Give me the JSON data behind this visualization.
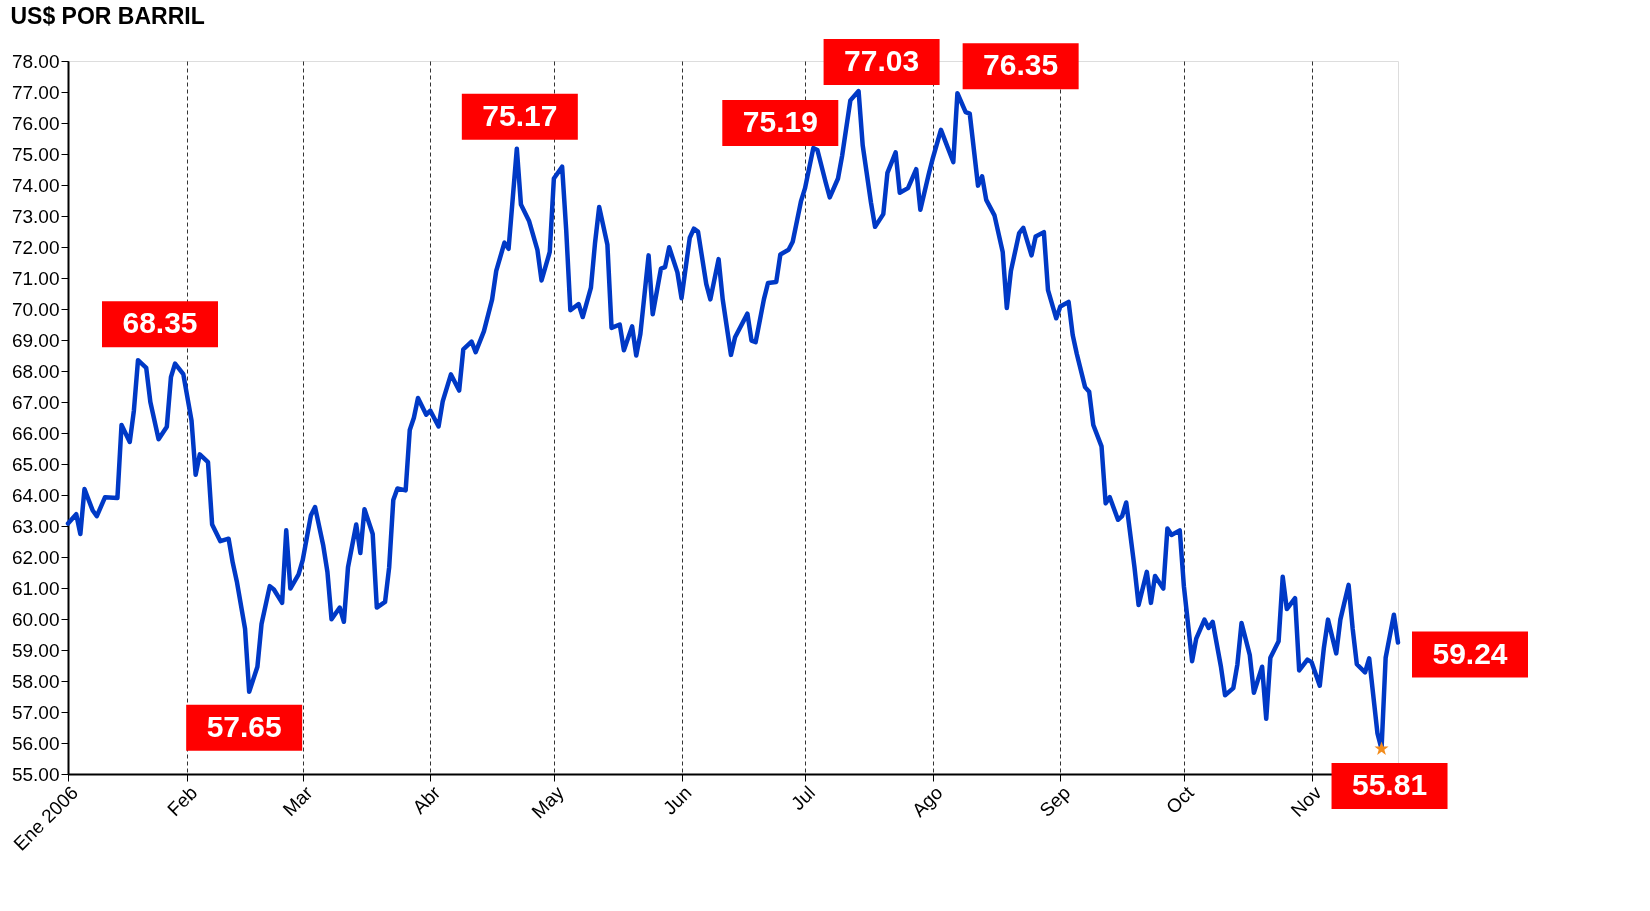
{
  "chart_data": {
    "type": "line",
    "title": "US$ POR BARRIL",
    "x": [
      "2006-01-03",
      "2006-01-05",
      "2006-01-06",
      "2006-01-07",
      "2006-01-09",
      "2006-01-10",
      "2006-01-12",
      "2006-01-15",
      "2006-01-16",
      "2006-01-18",
      "2006-01-19",
      "2006-01-20",
      "2006-01-22",
      "2006-01-23",
      "2006-01-25",
      "2006-01-27",
      "2006-01-28",
      "2006-01-29",
      "2006-01-31",
      "2006-02-02",
      "2006-02-03",
      "2006-02-04",
      "2006-02-06",
      "2006-02-07",
      "2006-02-09",
      "2006-02-11",
      "2006-02-12",
      "2006-02-13",
      "2006-02-15",
      "2006-02-16",
      "2006-02-18",
      "2006-02-19",
      "2006-02-21",
      "2006-02-22",
      "2006-02-24",
      "2006-02-25",
      "2006-02-26",
      "2006-02-28",
      "2006-03-01",
      "2006-03-03",
      "2006-03-04",
      "2006-03-06",
      "2006-03-07",
      "2006-03-08",
      "2006-03-10",
      "2006-03-11",
      "2006-03-12",
      "2006-03-14",
      "2006-03-15",
      "2006-03-16",
      "2006-03-18",
      "2006-03-19",
      "2006-03-21",
      "2006-03-22",
      "2006-03-23",
      "2006-03-24",
      "2006-03-26",
      "2006-03-27",
      "2006-03-28",
      "2006-03-29",
      "2006-03-31",
      "2006-04-01",
      "2006-04-03",
      "2006-04-04",
      "2006-04-06",
      "2006-04-08",
      "2006-04-09",
      "2006-04-11",
      "2006-04-12",
      "2006-04-14",
      "2006-04-16",
      "2006-04-17",
      "2006-04-19",
      "2006-04-20",
      "2006-04-22",
      "2006-04-23",
      "2006-04-25",
      "2006-04-27",
      "2006-04-28",
      "2006-04-30",
      "2006-05-01",
      "2006-05-03",
      "2006-05-04",
      "2006-05-05",
      "2006-05-07",
      "2006-05-08",
      "2006-05-10",
      "2006-05-11",
      "2006-05-12",
      "2006-05-14",
      "2006-05-15",
      "2006-05-17",
      "2006-05-18",
      "2006-05-20",
      "2006-05-21",
      "2006-05-22",
      "2006-05-24",
      "2006-05-25",
      "2006-05-27",
      "2006-05-28",
      "2006-05-29",
      "2006-05-31",
      "2006-06-01",
      "2006-06-03",
      "2006-06-04",
      "2006-06-05",
      "2006-06-07",
      "2006-06-08",
      "2006-06-10",
      "2006-06-11",
      "2006-06-13",
      "2006-06-14",
      "2006-06-17",
      "2006-06-18",
      "2006-06-19",
      "2006-06-21",
      "2006-06-22",
      "2006-06-24",
      "2006-06-25",
      "2006-06-27",
      "2006-06-28",
      "2006-06-30",
      "2006-07-01",
      "2006-07-03",
      "2006-07-04",
      "2006-07-06",
      "2006-07-07",
      "2006-07-09",
      "2006-07-10",
      "2006-07-12",
      "2006-07-14",
      "2006-07-15",
      "2006-07-17",
      "2006-07-18",
      "2006-07-20",
      "2006-07-21",
      "2006-07-23",
      "2006-07-24",
      "2006-07-26",
      "2006-07-28",
      "2006-07-29",
      "2006-07-31",
      "2006-08-01",
      "2006-08-03",
      "2006-08-04",
      "2006-08-06",
      "2006-08-07",
      "2006-08-09",
      "2006-08-10",
      "2006-08-12",
      "2006-08-13",
      "2006-08-14",
      "2006-08-16",
      "2006-08-18",
      "2006-08-19",
      "2006-08-20",
      "2006-08-22",
      "2006-08-23",
      "2006-08-25",
      "2006-08-26",
      "2006-08-28",
      "2006-08-29",
      "2006-08-31",
      "2006-09-01",
      "2006-09-03",
      "2006-09-04",
      "2006-09-05",
      "2006-09-07",
      "2006-09-08",
      "2006-09-09",
      "2006-09-11",
      "2006-09-12",
      "2006-09-13",
      "2006-09-15",
      "2006-09-16",
      "2006-09-17",
      "2006-09-19",
      "2006-09-20",
      "2006-09-22",
      "2006-09-23",
      "2006-09-24",
      "2006-09-26",
      "2006-09-27",
      "2006-09-28",
      "2006-09-30",
      "2006-10-01",
      "2006-10-03",
      "2006-10-04",
      "2006-10-06",
      "2006-10-07",
      "2006-10-08",
      "2006-10-10",
      "2006-10-11",
      "2006-10-13",
      "2006-10-14",
      "2006-10-15",
      "2006-10-17",
      "2006-10-18",
      "2006-10-20",
      "2006-10-21",
      "2006-10-22",
      "2006-10-24",
      "2006-10-25",
      "2006-10-26",
      "2006-10-28",
      "2006-10-29",
      "2006-10-31",
      "2006-11-01",
      "2006-11-03",
      "2006-11-04",
      "2006-11-05",
      "2006-11-07",
      "2006-11-08",
      "2006-11-10",
      "2006-11-11",
      "2006-11-12",
      "2006-11-14",
      "2006-11-15",
      "2006-11-17",
      "2006-11-18",
      "2006-11-19",
      "2006-11-21",
      "2006-11-22"
    ],
    "series": [
      {
        "color": "#0039c6",
        "line_style": "solid",
        "values": [
          63.08,
          63.38,
          62.74,
          64.19,
          63.5,
          63.32,
          63.93,
          63.9,
          66.26,
          65.71,
          66.72,
          68.35,
          68.1,
          67.0,
          65.8,
          66.2,
          67.8,
          68.24,
          67.9,
          66.4,
          64.65,
          65.31,
          65.06,
          63.05,
          62.51,
          62.59,
          61.82,
          61.21,
          59.68,
          57.65,
          58.46,
          59.84,
          61.06,
          60.95,
          60.52,
          62.86,
          60.98,
          61.44,
          61.9,
          63.35,
          63.61,
          62.36,
          61.52,
          59.99,
          60.37,
          59.91,
          61.67,
          63.05,
          62.13,
          63.54,
          62.74,
          60.37,
          60.55,
          61.67,
          63.84,
          64.21,
          64.15,
          66.1,
          66.49,
          67.13,
          66.59,
          66.72,
          66.21,
          67.02,
          67.89,
          67.37,
          68.7,
          68.95,
          68.61,
          69.28,
          70.31,
          71.23,
          72.14,
          71.94,
          75.17,
          73.37,
          72.83,
          71.91,
          70.92,
          71.84,
          74.21,
          74.59,
          72.53,
          69.96,
          70.16,
          69.74,
          70.69,
          72.14,
          73.29,
          72.07,
          69.39,
          69.5,
          68.67,
          69.44,
          68.5,
          69.19,
          71.73,
          69.83,
          71.3,
          71.35,
          71.99,
          71.18,
          70.35,
          72.3,
          72.59,
          72.5,
          70.81,
          70.31,
          71.61,
          70.31,
          68.52,
          69.09,
          69.85,
          68.98,
          68.93,
          70.31,
          70.84,
          70.87,
          71.76,
          71.91,
          72.17,
          73.47,
          73.9,
          75.19,
          75.13,
          74.09,
          73.6,
          74.21,
          74.94,
          76.73,
          77.03,
          75.28,
          73.44,
          72.65,
          73.06,
          74.39,
          75.05,
          73.75,
          73.9,
          74.51,
          73.2,
          74.33,
          74.85,
          75.78,
          75.43,
          74.74,
          76.96,
          76.35,
          76.3,
          73.98,
          74.28,
          73.52,
          73.02,
          71.84,
          70.03,
          71.23,
          72.45,
          72.62,
          71.73,
          72.34,
          72.48,
          70.61,
          69.7,
          70.08,
          70.23,
          69.16,
          68.55,
          67.48,
          67.33,
          66.26,
          65.57,
          63.73,
          63.93,
          63.2,
          63.32,
          63.76,
          61.67,
          60.45,
          61.52,
          60.52,
          61.39,
          60.98,
          62.92,
          62.71,
          62.86,
          61.06,
          58.64,
          59.37,
          59.98,
          59.71,
          59.91,
          58.46,
          57.54,
          57.77,
          58.54,
          59.87,
          58.84,
          57.62,
          58.46,
          56.78,
          58.75,
          59.28,
          61.36,
          60.32,
          60.67,
          58.34,
          58.69,
          58.61,
          57.85,
          59.07,
          59.98,
          58.89,
          59.98,
          61.1,
          59.68,
          58.54,
          58.28,
          58.73,
          56.32,
          55.81,
          58.75,
          60.14,
          59.24
        ]
      },
      {
        "type": "scatter",
        "color": "#f28c1c",
        "marker": "star",
        "x": [
          "2006-11-18"
        ],
        "values": [
          55.81
        ]
      }
    ],
    "xlim": [
      "2006-01-03",
      "2006-11-22"
    ],
    "xticks": [
      {
        "value": "2006-01-03",
        "label": "Ene 2006"
      },
      {
        "value": "2006-02-01",
        "label": "Feb"
      },
      {
        "value": "2006-03-01",
        "label": "Mar"
      },
      {
        "value": "2006-04-01",
        "label": "Abr"
      },
      {
        "value": "2006-05-01",
        "label": "May"
      },
      {
        "value": "2006-06-01",
        "label": "Jun"
      },
      {
        "value": "2006-07-01",
        "label": "Jul"
      },
      {
        "value": "2006-08-01",
        "label": "Ago"
      },
      {
        "value": "2006-09-01",
        "label": "Sep"
      },
      {
        "value": "2006-10-01",
        "label": "Oct"
      },
      {
        "value": "2006-11-01",
        "label": "Nov"
      }
    ],
    "ylim": [
      55,
      78
    ],
    "yticks": [
      {
        "value": 55,
        "label": "55.00"
      },
      {
        "value": 56,
        "label": "56.00"
      },
      {
        "value": 57,
        "label": "57.00"
      },
      {
        "value": 58,
        "label": "58.00"
      },
      {
        "value": 59,
        "label": "59.00"
      },
      {
        "value": 60,
        "label": "60.00"
      },
      {
        "value": 61,
        "label": "61.00"
      },
      {
        "value": 62,
        "label": "62.00"
      },
      {
        "value": 63,
        "label": "63.00"
      },
      {
        "value": 64,
        "label": "64.00"
      },
      {
        "value": 65,
        "label": "65.00"
      },
      {
        "value": 66,
        "label": "66.00"
      },
      {
        "value": 67,
        "label": "67.00"
      },
      {
        "value": 68,
        "label": "68.00"
      },
      {
        "value": 69,
        "label": "69.00"
      },
      {
        "value": 70,
        "label": "70.00"
      },
      {
        "value": 71,
        "label": "71.00"
      },
      {
        "value": 72,
        "label": "72.00"
      },
      {
        "value": 73,
        "label": "73.00"
      },
      {
        "value": 74,
        "label": "74.00"
      },
      {
        "value": 75,
        "label": "75.00"
      },
      {
        "value": 76,
        "label": "76.00"
      },
      {
        "value": 77,
        "label": "77.00"
      },
      {
        "value": 78,
        "label": "78.00"
      }
    ],
    "grid": "x",
    "legend": false,
    "annotations": [
      {
        "text": "68.35",
        "x": "2006-01-20",
        "y": 68.35
      },
      {
        "text": "57.65",
        "x": "2006-02-16",
        "y": 57.65
      },
      {
        "text": "75.17",
        "x": "2006-04-22",
        "y": 75.17
      },
      {
        "text": "75.19",
        "x": "2006-07-03",
        "y": 75.19
      },
      {
        "text": "77.03",
        "x": "2006-07-14",
        "y": 77.03
      },
      {
        "text": "76.35",
        "x": "2006-08-09",
        "y": 76.35
      },
      {
        "text": "59.24",
        "x": "2006-11-22",
        "y": 59.24
      },
      {
        "text": "55.81",
        "x": "2006-11-18",
        "y": 55.81
      }
    ]
  }
}
